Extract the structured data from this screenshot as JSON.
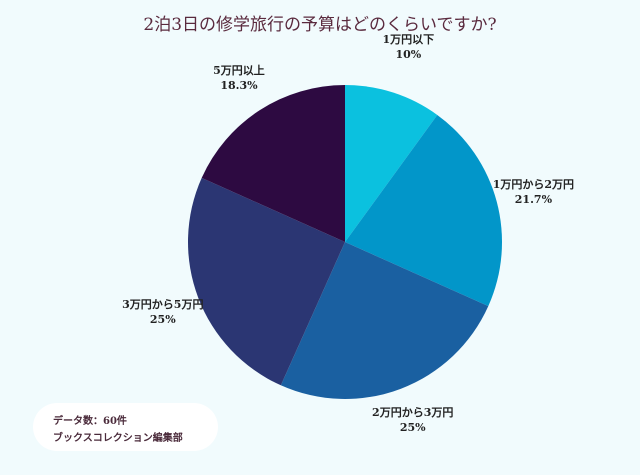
{
  "chart_data": {
    "type": "pie",
    "title": "2泊3日の修学旅行の予算はどのくらいですか?",
    "start": "top",
    "direction": "clockwise",
    "slices": [
      {
        "label": "1万円以下",
        "value": 10,
        "display": "10%",
        "color": "#0bc1df"
      },
      {
        "label": "1万円から2万円",
        "value": 21.7,
        "display": "21.7%",
        "color": "#0296c9"
      },
      {
        "label": "2万円から3万円",
        "value": 25,
        "display": "25%",
        "color": "#1a60a1"
      },
      {
        "label": "3万円から5万円",
        "value": 25,
        "display": "25%",
        "color": "#2b3673"
      },
      {
        "label": "5万円以上",
        "value": 18.3,
        "display": "18.3%",
        "color": "#2d0a41"
      }
    ]
  },
  "note": {
    "line1": "データ数：60件",
    "line2": "ブックスコレクション編集部"
  }
}
